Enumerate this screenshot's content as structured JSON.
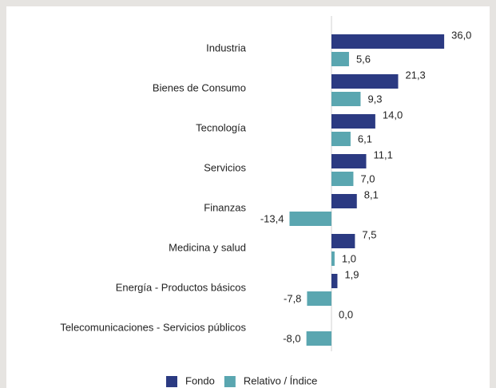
{
  "chart_data": {
    "type": "bar",
    "orientation": "horizontal",
    "categories": [
      "Industria",
      "Bienes de Consumo",
      "Tecnología",
      "Servicios",
      "Finanzas",
      "Medicina y salud",
      "Energía - Productos básicos",
      "Telecomunicaciones - Servicios públicos"
    ],
    "series": [
      {
        "name": "Fondo",
        "color": "#2b3a82",
        "values": [
          36.0,
          21.3,
          14.0,
          11.1,
          8.1,
          7.5,
          1.9,
          0.0
        ],
        "value_labels": [
          "36,0",
          "21,3",
          "14,0",
          "11,1",
          "8,1",
          "7,5",
          "1,9",
          "0,0"
        ]
      },
      {
        "name": "Relativo / Índice",
        "color": "#5aa6b0",
        "values": [
          5.6,
          9.3,
          6.1,
          7.0,
          -13.4,
          1.0,
          -7.8,
          -8.0
        ],
        "value_labels": [
          "5,6",
          "9,3",
          "6,1",
          "7,0",
          "-13,4",
          "1,0",
          "-7,8",
          "-8,0"
        ]
      }
    ],
    "legend": "bottom"
  }
}
